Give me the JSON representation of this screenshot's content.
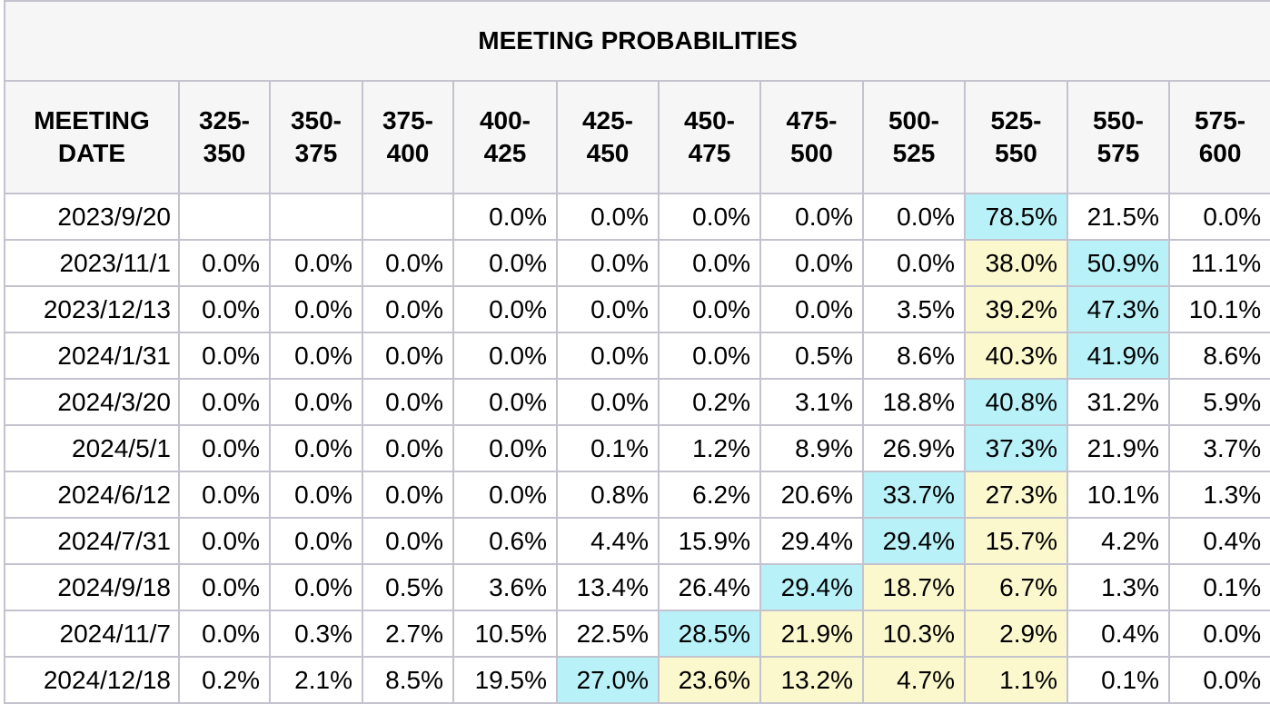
{
  "chart_data": {
    "type": "table",
    "title": "MEETING PROBABILITIES",
    "header": {
      "date_label_line1": "MEETING",
      "date_label_line2": "DATE",
      "ranges": [
        [
          "325-",
          "350"
        ],
        [
          "350-",
          "375"
        ],
        [
          "375-",
          "400"
        ],
        [
          "400-",
          "425"
        ],
        [
          "425-",
          "450"
        ],
        [
          "450-",
          "475"
        ],
        [
          "475-",
          "500"
        ],
        [
          "500-",
          "525"
        ],
        [
          "525-",
          "550"
        ],
        [
          "550-",
          "575"
        ],
        [
          "575-",
          "600"
        ]
      ]
    },
    "highlight_colors": {
      "max": "#b9f1f8",
      "secondary": "#fbf8cd"
    },
    "rows": [
      {
        "date": "2023/9/20",
        "values": [
          "",
          "",
          "",
          "0.0%",
          "0.0%",
          "0.0%",
          "0.0%",
          "0.0%",
          "78.5%",
          "21.5%",
          "0.0%"
        ],
        "highlights": [
          null,
          null,
          null,
          null,
          null,
          null,
          null,
          null,
          "max",
          null,
          null
        ]
      },
      {
        "date": "2023/11/1",
        "values": [
          "0.0%",
          "0.0%",
          "0.0%",
          "0.0%",
          "0.0%",
          "0.0%",
          "0.0%",
          "0.0%",
          "38.0%",
          "50.9%",
          "11.1%"
        ],
        "highlights": [
          null,
          null,
          null,
          null,
          null,
          null,
          null,
          null,
          "secondary",
          "max",
          null
        ]
      },
      {
        "date": "2023/12/13",
        "values": [
          "0.0%",
          "0.0%",
          "0.0%",
          "0.0%",
          "0.0%",
          "0.0%",
          "0.0%",
          "3.5%",
          "39.2%",
          "47.3%",
          "10.1%"
        ],
        "highlights": [
          null,
          null,
          null,
          null,
          null,
          null,
          null,
          null,
          "secondary",
          "max",
          null
        ]
      },
      {
        "date": "2024/1/31",
        "values": [
          "0.0%",
          "0.0%",
          "0.0%",
          "0.0%",
          "0.0%",
          "0.0%",
          "0.5%",
          "8.6%",
          "40.3%",
          "41.9%",
          "8.6%"
        ],
        "highlights": [
          null,
          null,
          null,
          null,
          null,
          null,
          null,
          null,
          "secondary",
          "max",
          null
        ]
      },
      {
        "date": "2024/3/20",
        "values": [
          "0.0%",
          "0.0%",
          "0.0%",
          "0.0%",
          "0.0%",
          "0.2%",
          "3.1%",
          "18.8%",
          "40.8%",
          "31.2%",
          "5.9%"
        ],
        "highlights": [
          null,
          null,
          null,
          null,
          null,
          null,
          null,
          null,
          "max",
          null,
          null
        ]
      },
      {
        "date": "2024/5/1",
        "values": [
          "0.0%",
          "0.0%",
          "0.0%",
          "0.0%",
          "0.1%",
          "1.2%",
          "8.9%",
          "26.9%",
          "37.3%",
          "21.9%",
          "3.7%"
        ],
        "highlights": [
          null,
          null,
          null,
          null,
          null,
          null,
          null,
          null,
          "max",
          null,
          null
        ]
      },
      {
        "date": "2024/6/12",
        "values": [
          "0.0%",
          "0.0%",
          "0.0%",
          "0.0%",
          "0.8%",
          "6.2%",
          "20.6%",
          "33.7%",
          "27.3%",
          "10.1%",
          "1.3%"
        ],
        "highlights": [
          null,
          null,
          null,
          null,
          null,
          null,
          null,
          "max",
          "secondary",
          null,
          null
        ]
      },
      {
        "date": "2024/7/31",
        "values": [
          "0.0%",
          "0.0%",
          "0.0%",
          "0.6%",
          "4.4%",
          "15.9%",
          "29.4%",
          "29.4%",
          "15.7%",
          "4.2%",
          "0.4%"
        ],
        "highlights": [
          null,
          null,
          null,
          null,
          null,
          null,
          null,
          "max",
          "secondary",
          null,
          null
        ]
      },
      {
        "date": "2024/9/18",
        "values": [
          "0.0%",
          "0.0%",
          "0.5%",
          "3.6%",
          "13.4%",
          "26.4%",
          "29.4%",
          "18.7%",
          "6.7%",
          "1.3%",
          "0.1%"
        ],
        "highlights": [
          null,
          null,
          null,
          null,
          null,
          null,
          "max",
          "secondary",
          "secondary",
          null,
          null
        ]
      },
      {
        "date": "2024/11/7",
        "values": [
          "0.0%",
          "0.3%",
          "2.7%",
          "10.5%",
          "22.5%",
          "28.5%",
          "21.9%",
          "10.3%",
          "2.9%",
          "0.4%",
          "0.0%"
        ],
        "highlights": [
          null,
          null,
          null,
          null,
          null,
          "max",
          "secondary",
          "secondary",
          "secondary",
          null,
          null
        ]
      },
      {
        "date": "2024/12/18",
        "values": [
          "0.2%",
          "2.1%",
          "8.5%",
          "19.5%",
          "27.0%",
          "23.6%",
          "13.2%",
          "4.7%",
          "1.1%",
          "0.1%",
          "0.0%"
        ],
        "highlights": [
          null,
          null,
          null,
          null,
          "max",
          "secondary",
          "secondary",
          "secondary",
          "secondary",
          null,
          null
        ]
      }
    ]
  }
}
